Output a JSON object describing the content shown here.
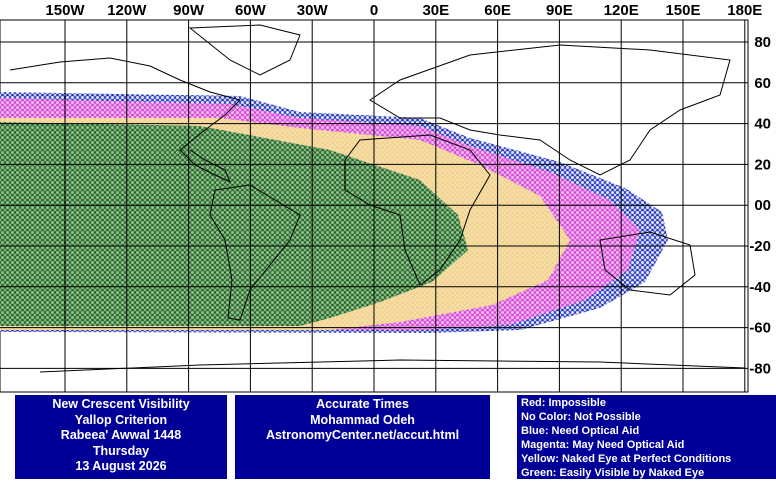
{
  "map": {
    "lon_labels": [
      "150W",
      "120W",
      "90W",
      "60W",
      "30W",
      "0",
      "30E",
      "60E",
      "90E",
      "120E",
      "150E",
      "180E"
    ],
    "lat_labels": [
      "80",
      "60",
      "40",
      "20",
      "00",
      "-20",
      "-40",
      "-60",
      "-80"
    ]
  },
  "info_left": {
    "lines": [
      "New Crescent Visibility",
      "Yallop Criterion",
      "Rabeea' Awwal 1448",
      "Thursday",
      "13 August 2026"
    ]
  },
  "info_middle": {
    "lines": [
      "Accurate Times",
      "Mohammad Odeh",
      "AstronomyCenter.net/accut.html"
    ]
  },
  "legend": {
    "lines": [
      "Red: Impossible",
      "No Color: Not Possible",
      "Blue: Need Optical Aid",
      "Magenta: May Need Optical Aid",
      "Yellow: Naked Eye at Perfect Conditions",
      "Green: Easily Visible by Naked Eye"
    ]
  }
}
